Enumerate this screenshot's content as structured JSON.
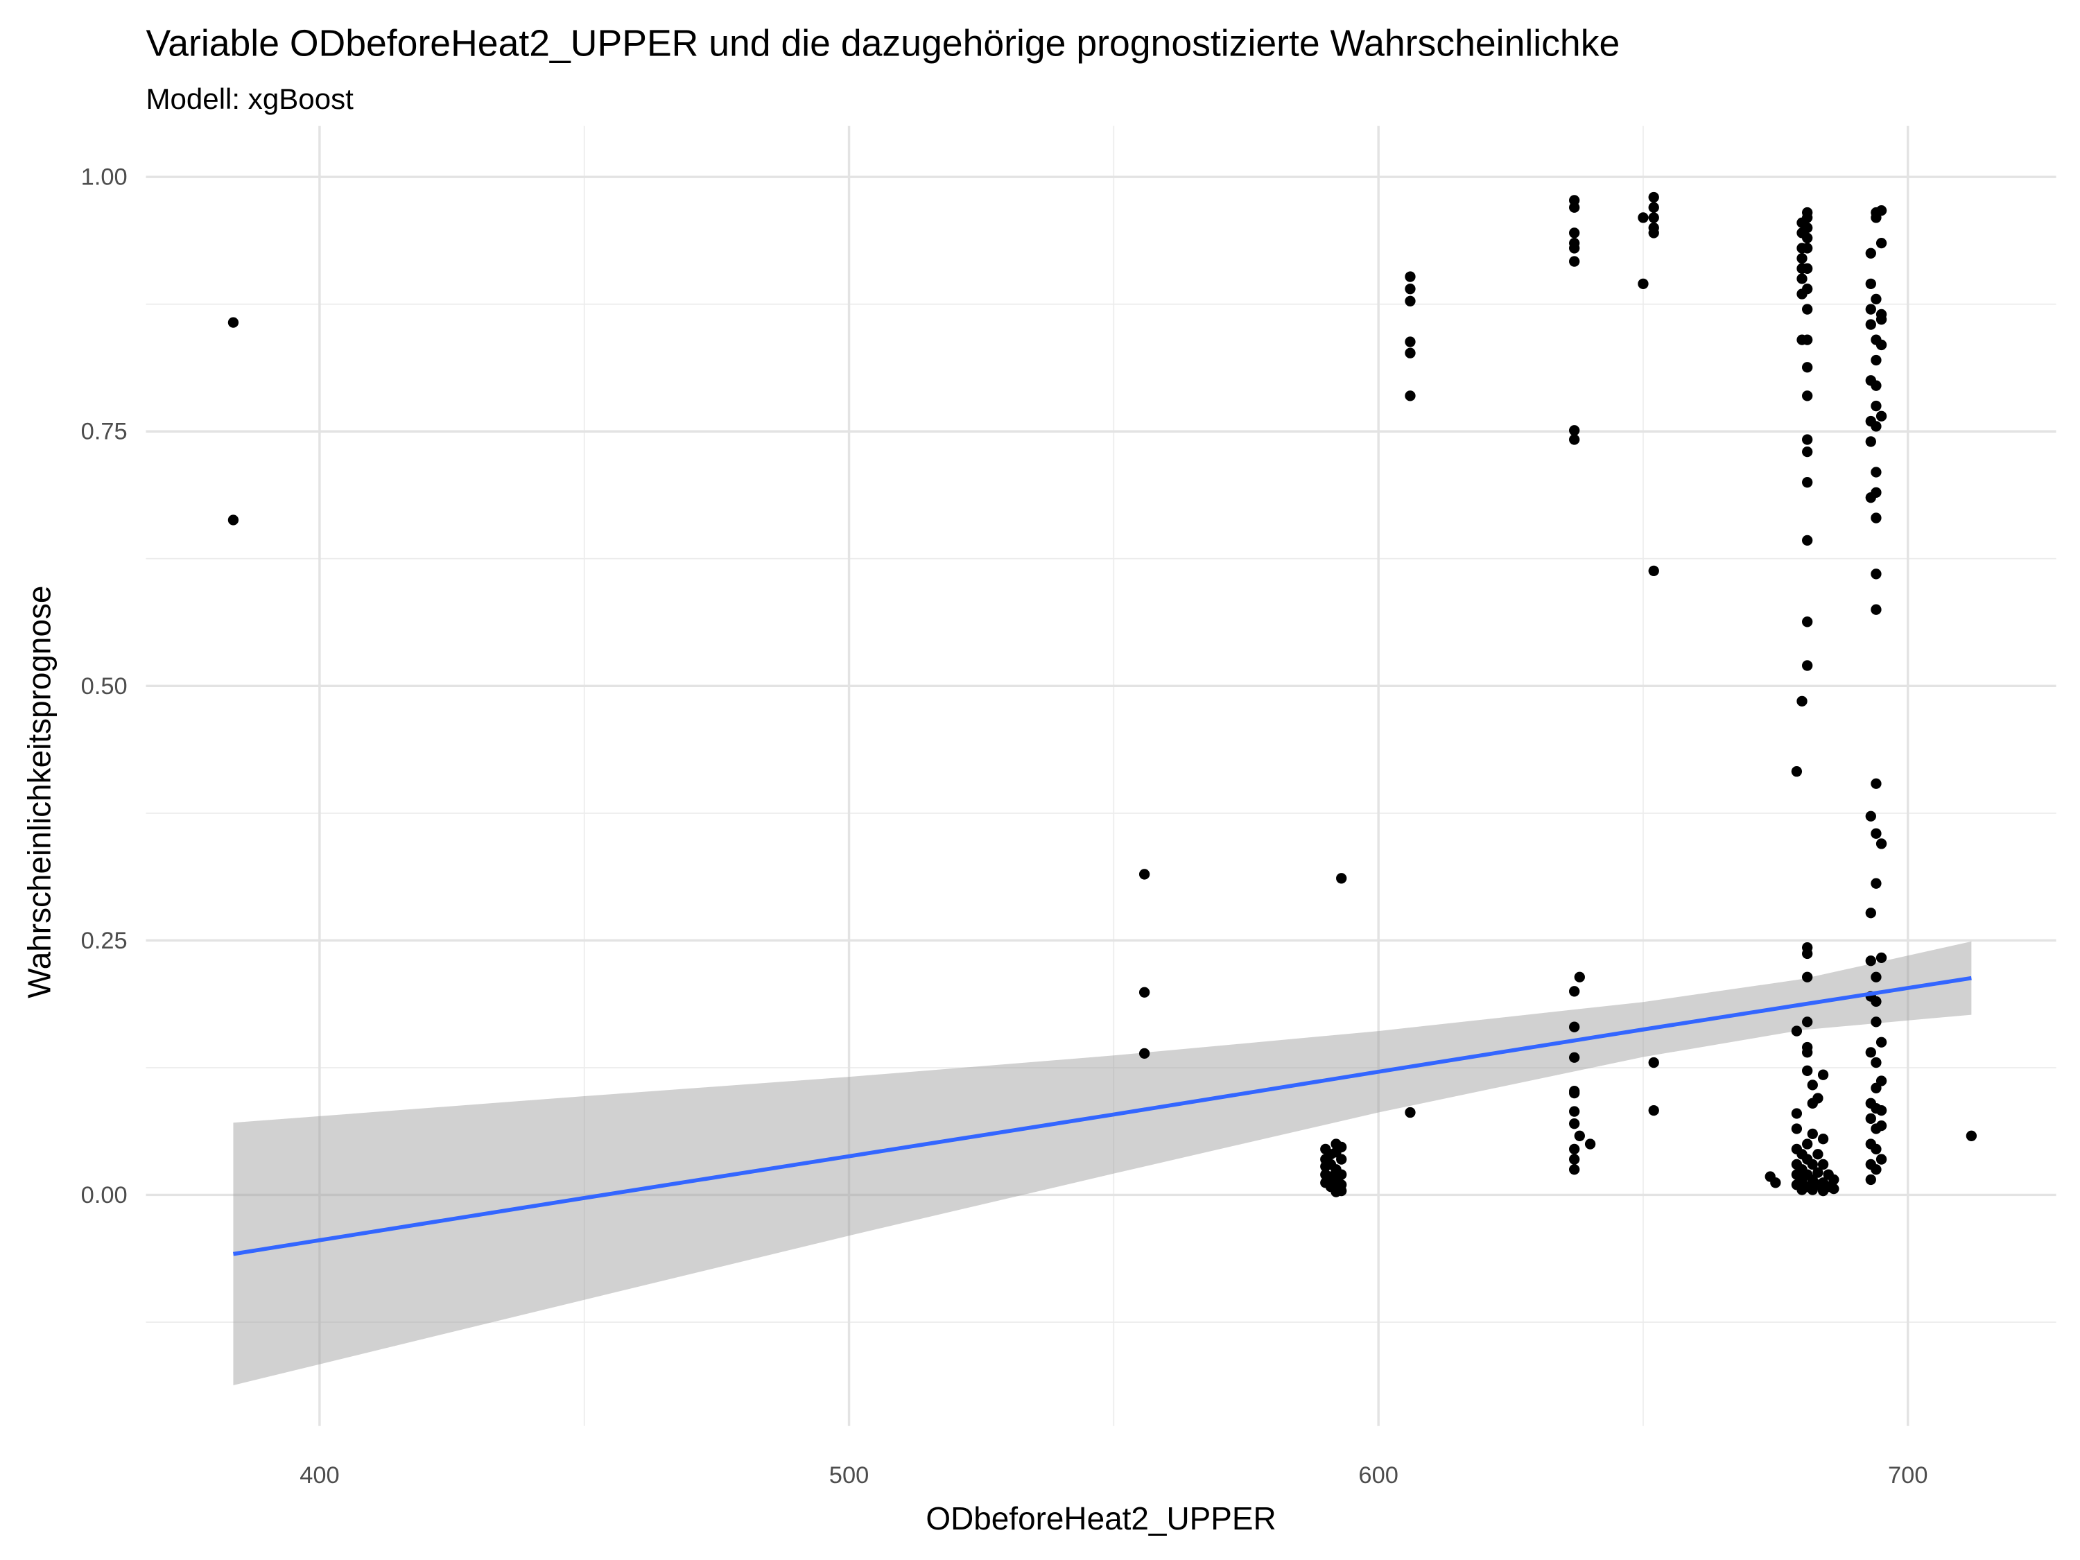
{
  "chart_data": {
    "type": "scatter",
    "title": "Variable ODbeforeHeat2_UPPER und die dazugehörige prognostizierte Wahrscheinlichke",
    "subtitle": "Modell: xgBoost",
    "x_label": "ODbeforeHeat2_UPPER",
    "y_label": "Wahrscheinlichkeitsprognose",
    "xlim": [
      367.2,
      728
    ],
    "ylim": [
      -0.227,
      1.05
    ],
    "xticks": [
      400,
      500,
      600,
      700
    ],
    "yticks": [
      {
        "value": 0,
        "label": "0.00"
      },
      {
        "value": 0.25,
        "label": "0.25"
      },
      {
        "value": 0.5,
        "label": "0.50"
      },
      {
        "value": 0.75,
        "label": "0.75"
      },
      {
        "value": 1,
        "label": "1.00"
      }
    ],
    "minor_xticks": [
      450,
      550,
      650
    ],
    "minor_yticks": [
      -0.125,
      0.125,
      0.375,
      0.625,
      0.875
    ],
    "grid": true,
    "series": [
      {
        "color": "#000000",
        "x": [
          383.7,
          383.7,
          555.8,
          555.8,
          555.8,
          590,
          590,
          590,
          590,
          590,
          591,
          591,
          591,
          591,
          592,
          592,
          592,
          592,
          592,
          592,
          593,
          593,
          593,
          593,
          593,
          593,
          606,
          606,
          606,
          606,
          606,
          606,
          606,
          637,
          637,
          637,
          637,
          637,
          637,
          637,
          637,
          637,
          637,
          637,
          637,
          637,
          637,
          637,
          637,
          637,
          637,
          638,
          638,
          640,
          650,
          650,
          652,
          652,
          652,
          652,
          652,
          652,
          652,
          652,
          674,
          675,
          679,
          679,
          679,
          679,
          679,
          679,
          679,
          679,
          680,
          680,
          680,
          680,
          680,
          680,
          680,
          680,
          680,
          680,
          680,
          680,
          680,
          681,
          681,
          681,
          681,
          681,
          681,
          681,
          681,
          681,
          681,
          681,
          681,
          681,
          681,
          681,
          681,
          681,
          681,
          681,
          681,
          681,
          681,
          681,
          681,
          681,
          681,
          681,
          681,
          682,
          682,
          682,
          682,
          682,
          682,
          683,
          683,
          683,
          683,
          684,
          684,
          684,
          684,
          684,
          685,
          685,
          686,
          686,
          693,
          693,
          693,
          693,
          693,
          693,
          693,
          693,
          693,
          693,
          693,
          693,
          693,
          693,
          693,
          693,
          693,
          693,
          694,
          694,
          694,
          694,
          694,
          694,
          694,
          694,
          694,
          694,
          694,
          694,
          694,
          694,
          694,
          694,
          694,
          694,
          694,
          694,
          694,
          694,
          694,
          694,
          694,
          695,
          695,
          695,
          695,
          695,
          695,
          695,
          695,
          695,
          695,
          695,
          695,
          695,
          712
        ],
        "values": [
          0.857,
          0.663,
          0.315,
          0.199,
          0.139,
          0.045,
          0.035,
          0.028,
          0.02,
          0.012,
          0.04,
          0.03,
          0.018,
          0.008,
          0.05,
          0.042,
          0.025,
          0.015,
          0.006,
          0.003,
          0.311,
          0.047,
          0.035,
          0.02,
          0.01,
          0.004,
          0.902,
          0.89,
          0.878,
          0.838,
          0.827,
          0.785,
          0.081,
          0.977,
          0.97,
          0.945,
          0.935,
          0.93,
          0.917,
          0.751,
          0.742,
          0.2,
          0.165,
          0.135,
          0.102,
          0.1,
          0.082,
          0.07,
          0.045,
          0.035,
          0.025,
          0.214,
          0.058,
          0.05,
          0.96,
          0.895,
          0.98,
          0.97,
          0.96,
          0.95,
          0.945,
          0.613,
          0.13,
          0.083,
          0.018,
          0.012,
          0.416,
          0.161,
          0.08,
          0.065,
          0.045,
          0.03,
          0.02,
          0.01,
          0.485,
          0.955,
          0.945,
          0.93,
          0.92,
          0.91,
          0.9,
          0.885,
          0.84,
          0.04,
          0.025,
          0.015,
          0.005,
          0.965,
          0.96,
          0.95,
          0.94,
          0.93,
          0.91,
          0.89,
          0.87,
          0.84,
          0.813,
          0.785,
          0.742,
          0.73,
          0.7,
          0.643,
          0.563,
          0.52,
          0.243,
          0.237,
          0.214,
          0.17,
          0.145,
          0.14,
          0.122,
          0.05,
          0.035,
          0.02,
          0.008,
          0.108,
          0.09,
          0.06,
          0.03,
          0.015,
          0.005,
          0.095,
          0.04,
          0.022,
          0.01,
          0.118,
          0.055,
          0.03,
          0.012,
          0.004,
          0.02,
          0.008,
          0.015,
          0.006,
          0.925,
          0.895,
          0.87,
          0.855,
          0.8,
          0.76,
          0.74,
          0.685,
          0.372,
          0.277,
          0.23,
          0.195,
          0.14,
          0.09,
          0.075,
          0.05,
          0.03,
          0.015,
          0.965,
          0.96,
          0.88,
          0.84,
          0.82,
          0.795,
          0.775,
          0.755,
          0.71,
          0.69,
          0.665,
          0.61,
          0.575,
          0.404,
          0.355,
          0.306,
          0.214,
          0.19,
          0.17,
          0.13,
          0.105,
          0.085,
          0.065,
          0.045,
          0.025,
          0.967,
          0.935,
          0.865,
          0.86,
          0.835,
          0.765,
          0.345,
          0.233,
          0.15,
          0.112,
          0.083,
          0.068,
          0.035,
          0.058
        ]
      }
    ],
    "fit": {
      "color": "#3366FF",
      "band_color": "#999999",
      "x": [
        383.7,
        450,
        500,
        550,
        600,
        650,
        680,
        712
      ],
      "values": [
        -0.058,
        -0.003,
        0.038,
        0.079,
        0.121,
        0.1625,
        0.187,
        0.213
      ],
      "lower": [
        -0.187,
        -0.103,
        -0.04,
        0.021,
        0.081,
        0.1355,
        0.162,
        0.177
      ],
      "upper": [
        0.071,
        0.097,
        0.116,
        0.137,
        0.161,
        0.1895,
        0.212,
        0.249
      ]
    }
  }
}
